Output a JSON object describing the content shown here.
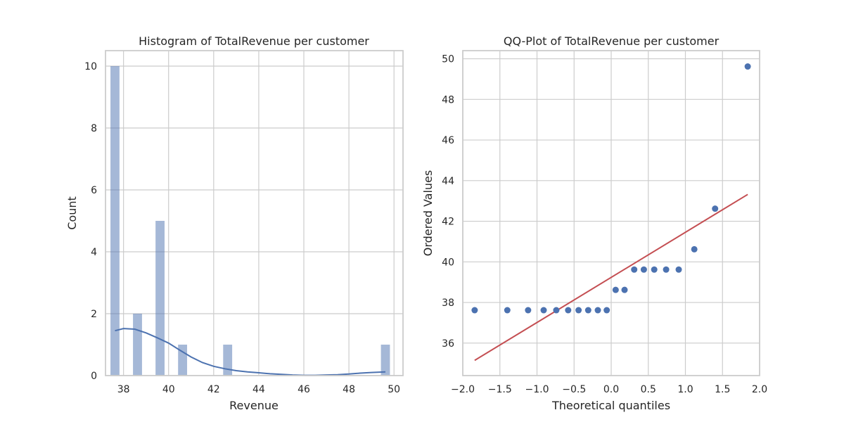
{
  "chart_data": [
    {
      "type": "bar",
      "subtype": "histogram-with-kde",
      "title": "Histogram of TotalRevenue per customer",
      "xlabel": "Revenue",
      "ylabel": "Count",
      "xlim": [
        37.2,
        50.4
      ],
      "ylim": [
        0,
        10.5
      ],
      "xticks": [
        38,
        40,
        42,
        44,
        46,
        48,
        50
      ],
      "yticks": [
        0,
        2,
        4,
        6,
        8,
        10
      ],
      "grid": true,
      "bar_color": "#4c72b0",
      "bar_opacity": 0.5,
      "bin_width": 0.4,
      "bins": [
        {
          "x": 37.62,
          "count": 10
        },
        {
          "x": 38.62,
          "count": 2
        },
        {
          "x": 39.62,
          "count": 5
        },
        {
          "x": 40.62,
          "count": 1
        },
        {
          "x": 42.62,
          "count": 1
        },
        {
          "x": 49.62,
          "count": 1
        }
      ],
      "kde": {
        "color": "#4c72b0",
        "x": [
          37.62,
          38.0,
          38.5,
          39.0,
          39.5,
          40.0,
          40.5,
          41.0,
          41.5,
          42.0,
          42.5,
          43.0,
          43.5,
          44.0,
          44.5,
          45.0,
          45.5,
          46.0,
          46.5,
          47.0,
          47.5,
          48.0,
          48.5,
          49.0,
          49.62
        ],
        "y": [
          1.45,
          1.52,
          1.5,
          1.38,
          1.22,
          1.05,
          0.82,
          0.6,
          0.42,
          0.3,
          0.22,
          0.16,
          0.12,
          0.09,
          0.06,
          0.04,
          0.02,
          0.01,
          0.01,
          0.02,
          0.03,
          0.05,
          0.08,
          0.1,
          0.12
        ]
      }
    },
    {
      "type": "scatter",
      "subtype": "qq-plot",
      "title": "QQ-Plot of TotalRevenue per customer",
      "xlabel": "Theoretical quantiles",
      "ylabel": "Ordered Values",
      "xlim": [
        -2.0,
        2.0
      ],
      "ylim": [
        34.4,
        50.4
      ],
      "xticks": [
        -2.0,
        -1.5,
        -1.0,
        -0.5,
        0.0,
        0.5,
        1.0,
        1.5,
        2.0
      ],
      "yticks": [
        36,
        38,
        40,
        42,
        44,
        46,
        48,
        50
      ],
      "grid": true,
      "point_color": "#4c72b0",
      "line_color": "#c44e52",
      "points": [
        {
          "x": -1.84,
          "y": 37.62
        },
        {
          "x": -1.4,
          "y": 37.62
        },
        {
          "x": -1.12,
          "y": 37.62
        },
        {
          "x": -0.91,
          "y": 37.62
        },
        {
          "x": -0.74,
          "y": 37.62
        },
        {
          "x": -0.58,
          "y": 37.62
        },
        {
          "x": -0.44,
          "y": 37.62
        },
        {
          "x": -0.31,
          "y": 37.62
        },
        {
          "x": -0.18,
          "y": 37.62
        },
        {
          "x": -0.06,
          "y": 37.62
        },
        {
          "x": 0.06,
          "y": 38.62
        },
        {
          "x": 0.18,
          "y": 38.62
        },
        {
          "x": 0.31,
          "y": 39.62
        },
        {
          "x": 0.44,
          "y": 39.62
        },
        {
          "x": 0.58,
          "y": 39.62
        },
        {
          "x": 0.74,
          "y": 39.62
        },
        {
          "x": 0.91,
          "y": 39.62
        },
        {
          "x": 1.12,
          "y": 40.62
        },
        {
          "x": 1.4,
          "y": 42.62
        },
        {
          "x": 1.84,
          "y": 49.62
        }
      ],
      "fit_line": {
        "x": [
          -1.84,
          1.84
        ],
        "y": [
          35.15,
          43.32
        ]
      }
    }
  ]
}
